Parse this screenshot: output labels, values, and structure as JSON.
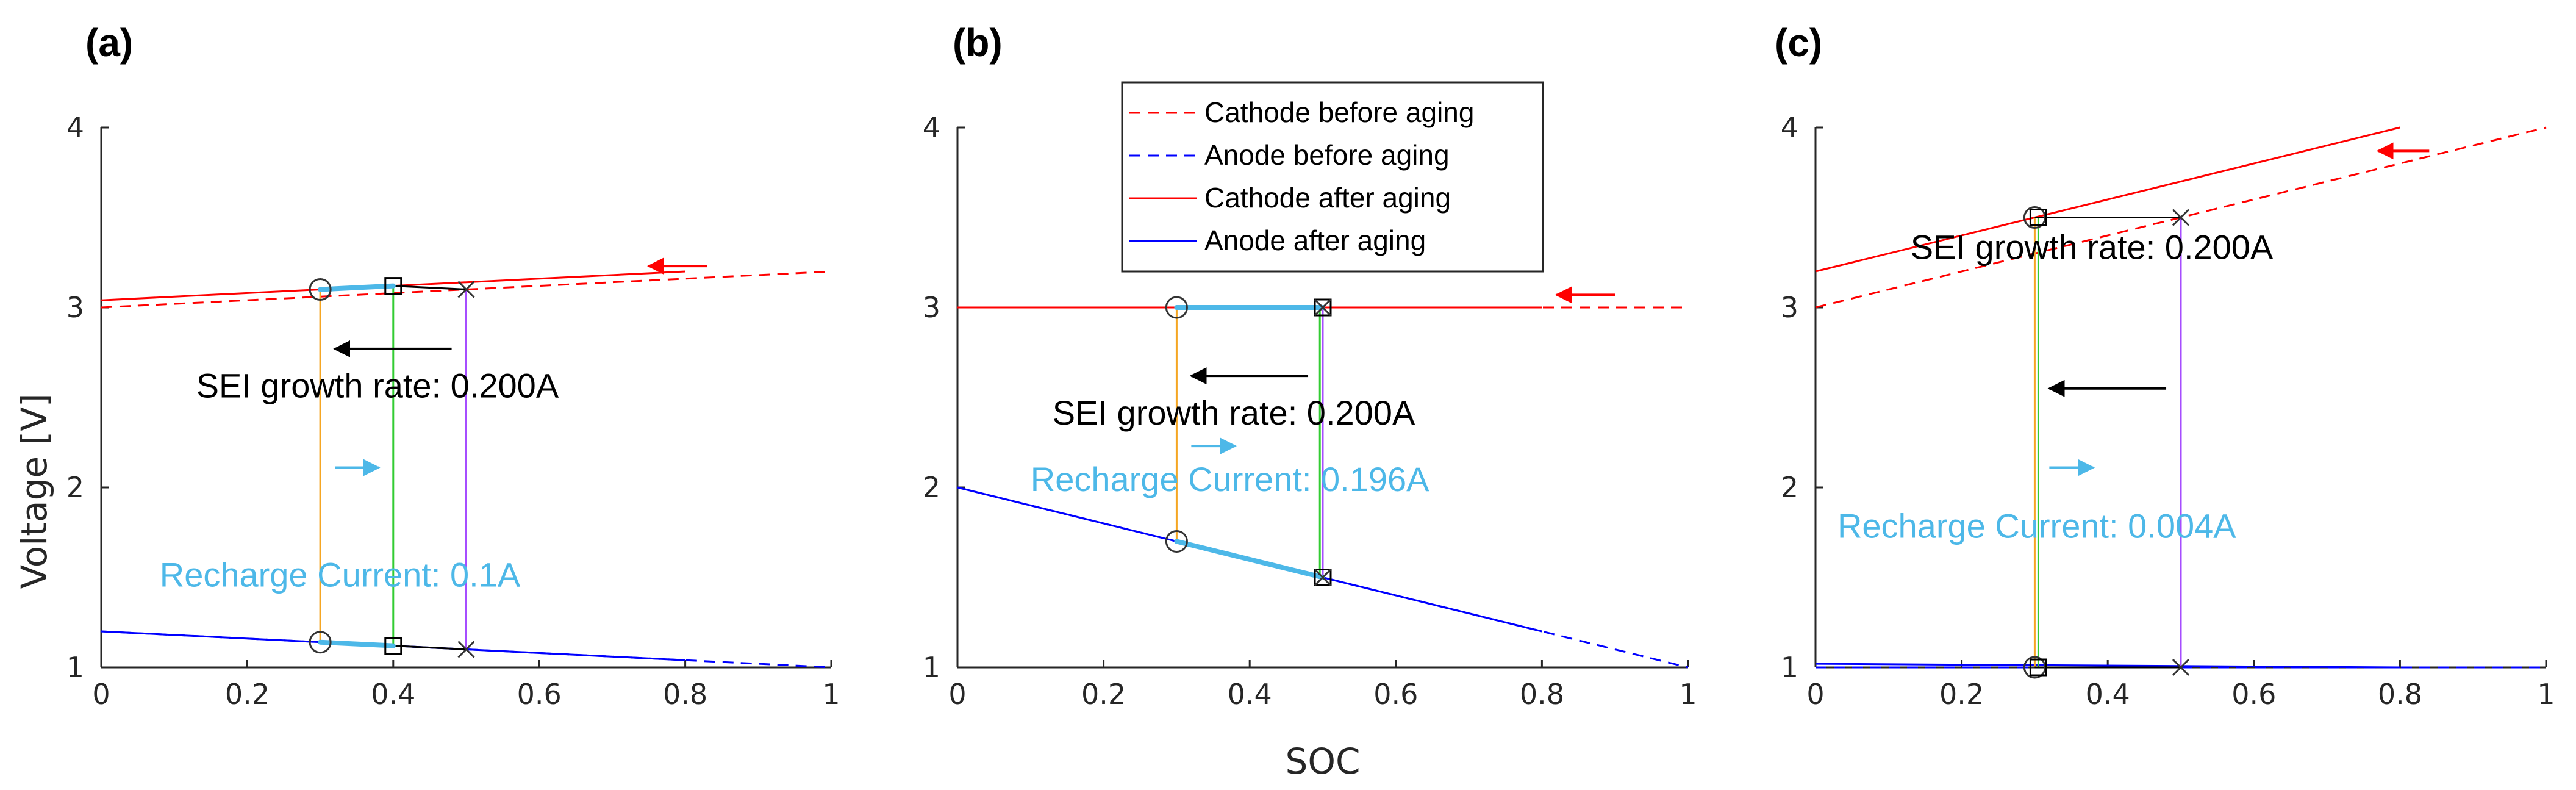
{
  "colors": {
    "cathode": "#ff0000",
    "anode": "#0000ff",
    "cyan": "#4db8e8",
    "orange": "#f5a623",
    "green": "#33cc33",
    "purple": "#a64dff",
    "black": "#000000",
    "axis": "#262626"
  },
  "legend": {
    "entries": [
      {
        "label": "Cathode before aging",
        "color": "#ff0000",
        "style": "dashed"
      },
      {
        "label": "Anode before aging",
        "color": "#0000ff",
        "style": "dashed"
      },
      {
        "label": "Cathode after aging",
        "color": "#ff0000",
        "style": "solid"
      },
      {
        "label": "Anode  after aging",
        "color": "#0000ff",
        "style": "solid"
      }
    ]
  },
  "chart_data": [
    {
      "type": "line",
      "panel_label": "(a)",
      "xlabel": "",
      "ylabel": "Voltage [V]",
      "xlim": [
        0,
        1
      ],
      "ylim": [
        1,
        4
      ],
      "xticks": [
        "0",
        "0.2",
        "0.4",
        "0.6",
        "0.8",
        "1"
      ],
      "yticks": [
        "1",
        "2",
        "3",
        "4"
      ],
      "series": [
        {
          "name": "Cathode before aging",
          "x": [
            0,
            1
          ],
          "y": [
            3.0,
            3.2
          ],
          "color": "#ff0000",
          "style": "dashed"
        },
        {
          "name": "Anode before aging",
          "x": [
            0,
            1
          ],
          "y": [
            1.2,
            1.0
          ],
          "color": "#0000ff",
          "style": "dashed"
        },
        {
          "name": "Cathode after aging",
          "x": [
            0,
            0.8
          ],
          "y": [
            3.04,
            3.2
          ],
          "color": "#ff0000",
          "style": "solid"
        },
        {
          "name": "Anode  after aging",
          "x": [
            0,
            0.8
          ],
          "y": [
            1.2,
            1.04
          ],
          "color": "#0000ff",
          "style": "solid"
        }
      ],
      "cyan_segments": [
        {
          "x": [
            0.3,
            0.4
          ],
          "y": [
            3.1,
            3.12
          ]
        },
        {
          "x": [
            0.3,
            0.4
          ],
          "y": [
            1.14,
            1.12
          ]
        }
      ],
      "vlines": [
        {
          "x": 0.3,
          "y": [
            1.14,
            3.1
          ],
          "color": "#f5a623"
        },
        {
          "x": 0.4,
          "y": [
            1.12,
            3.12
          ],
          "color": "#33cc33"
        },
        {
          "x": 0.5,
          "y": [
            1.1,
            3.1
          ],
          "color": "#a64dff"
        }
      ],
      "markers": [
        {
          "shape": "circle",
          "x": 0.3,
          "y": 3.1
        },
        {
          "shape": "square",
          "x": 0.4,
          "y": 3.12
        },
        {
          "shape": "cross",
          "x": 0.5,
          "y": 3.1
        },
        {
          "shape": "circle",
          "x": 0.3,
          "y": 1.14
        },
        {
          "shape": "square",
          "x": 0.4,
          "y": 1.12
        },
        {
          "shape": "cross",
          "x": 0.5,
          "y": 1.1
        }
      ],
      "black_segments": [
        {
          "x": [
            0.4,
            0.5
          ],
          "y": [
            3.12,
            3.1
          ]
        },
        {
          "x": [
            0.4,
            0.5
          ],
          "y": [
            1.12,
            1.1
          ]
        }
      ],
      "arrows": [
        {
          "color": "#ff0000",
          "x": [
            0.83,
            0.75
          ],
          "y": [
            3.23,
            3.23
          ]
        },
        {
          "color": "#000000",
          "x": [
            0.48,
            0.32
          ],
          "y": [
            2.77,
            2.77
          ]
        },
        {
          "color": "#4db8e8",
          "x": [
            0.32,
            0.38
          ],
          "y": [
            2.11,
            2.11
          ]
        }
      ],
      "annotations": {
        "sei": {
          "text": "SEI growth rate: 0.200A",
          "x": 0.13,
          "y": 2.5
        },
        "recharge": {
          "text": "Recharge Current: 0.1A",
          "x": 0.08,
          "y": 1.45
        }
      }
    },
    {
      "type": "line",
      "panel_label": "(b)",
      "xlabel": "SOC",
      "ylabel": "",
      "xlim": [
        0,
        1
      ],
      "ylim": [
        1,
        4
      ],
      "xticks": [
        "0",
        "0.2",
        "0.4",
        "0.6",
        "0.8",
        "1"
      ],
      "yticks": [
        "1",
        "2",
        "3",
        "4"
      ],
      "series": [
        {
          "name": "Cathode before aging",
          "x": [
            0,
            1
          ],
          "y": [
            3.0,
            3.0
          ],
          "color": "#ff0000",
          "style": "dashed"
        },
        {
          "name": "Anode before aging",
          "x": [
            0,
            1
          ],
          "y": [
            2.0,
            1.0
          ],
          "color": "#0000ff",
          "style": "dashed"
        },
        {
          "name": "Cathode after aging",
          "x": [
            0,
            0.8
          ],
          "y": [
            3.0,
            3.0
          ],
          "color": "#ff0000",
          "style": "solid"
        },
        {
          "name": "Anode  after aging",
          "x": [
            0,
            0.8
          ],
          "y": [
            2.0,
            1.2
          ],
          "color": "#0000ff",
          "style": "solid"
        }
      ],
      "cyan_segments": [
        {
          "x": [
            0.3,
            0.5
          ],
          "y": [
            3.0,
            3.0
          ]
        },
        {
          "x": [
            0.3,
            0.5
          ],
          "y": [
            1.7,
            1.5
          ]
        }
      ],
      "vlines": [
        {
          "x": 0.3,
          "y": [
            1.7,
            3.0
          ],
          "color": "#f5a623"
        },
        {
          "x": 0.496,
          "y": [
            1.5,
            3.0
          ],
          "color": "#33cc33"
        },
        {
          "x": 0.5,
          "y": [
            1.5,
            3.0
          ],
          "color": "#a64dff"
        }
      ],
      "markers": [
        {
          "shape": "circle",
          "x": 0.3,
          "y": 3.0
        },
        {
          "shape": "square",
          "x": 0.5,
          "y": 3.0
        },
        {
          "shape": "cross",
          "x": 0.5,
          "y": 3.0
        },
        {
          "shape": "circle",
          "x": 0.3,
          "y": 1.7
        },
        {
          "shape": "square",
          "x": 0.5,
          "y": 1.5
        },
        {
          "shape": "cross",
          "x": 0.5,
          "y": 1.5
        }
      ],
      "black_segments": [],
      "arrows": [
        {
          "color": "#ff0000",
          "x": [
            0.9,
            0.82
          ],
          "y": [
            3.07,
            3.07
          ]
        },
        {
          "color": "#000000",
          "x": [
            0.48,
            0.32
          ],
          "y": [
            2.62,
            2.62
          ]
        },
        {
          "color": "#4db8e8",
          "x": [
            0.32,
            0.38
          ],
          "y": [
            2.23,
            2.23
          ]
        }
      ],
      "annotations": {
        "sei": {
          "text": "SEI growth rate: 0.200A",
          "x": 0.13,
          "y": 2.35
        },
        "recharge": {
          "text": "Recharge Current: 0.196A",
          "x": 0.1,
          "y": 1.98
        }
      }
    },
    {
      "type": "line",
      "panel_label": "(c)",
      "xlabel": "",
      "ylabel": "",
      "xlim": [
        0,
        1
      ],
      "ylim": [
        1,
        4
      ],
      "xticks": [
        "0",
        "0.2",
        "0.4",
        "0.6",
        "0.8",
        "1"
      ],
      "yticks": [
        "1",
        "2",
        "3",
        "4"
      ],
      "series": [
        {
          "name": "Cathode before aging",
          "x": [
            0,
            1
          ],
          "y": [
            3.0,
            4.0
          ],
          "color": "#ff0000",
          "style": "dashed"
        },
        {
          "name": "Anode before aging",
          "x": [
            0,
            1
          ],
          "y": [
            1.0,
            1.0
          ],
          "color": "#0000ff",
          "style": "dashed"
        },
        {
          "name": "Cathode after aging",
          "x": [
            0,
            0.8
          ],
          "y": [
            3.2,
            4.0
          ],
          "color": "#ff0000",
          "style": "solid"
        },
        {
          "name": "Anode  after aging",
          "x": [
            0,
            0.8
          ],
          "y": [
            1.02,
            1.0
          ],
          "color": "#0000ff",
          "style": "solid"
        }
      ],
      "cyan_segments": [],
      "vlines": [
        {
          "x": 0.3,
          "y": [
            1.0,
            3.5
          ],
          "color": "#f5a623"
        },
        {
          "x": 0.305,
          "y": [
            1.0,
            3.5
          ],
          "color": "#33cc33"
        },
        {
          "x": 0.5,
          "y": [
            1.0,
            3.5
          ],
          "color": "#a64dff"
        }
      ],
      "markers": [
        {
          "shape": "circle",
          "x": 0.3,
          "y": 3.5
        },
        {
          "shape": "square",
          "x": 0.305,
          "y": 3.5
        },
        {
          "shape": "cross",
          "x": 0.5,
          "y": 3.5
        },
        {
          "shape": "circle",
          "x": 0.3,
          "y": 1.0
        },
        {
          "shape": "square",
          "x": 0.305,
          "y": 1.0
        },
        {
          "shape": "cross",
          "x": 0.5,
          "y": 1.0
        }
      ],
      "black_segments": [
        {
          "x": [
            0.3,
            0.5
          ],
          "y": [
            3.5,
            3.5
          ]
        },
        {
          "x": [
            0.3,
            0.5
          ],
          "y": [
            1.0,
            1.0
          ]
        }
      ],
      "arrows": [
        {
          "color": "#ff0000",
          "x": [
            0.84,
            0.77
          ],
          "y": [
            3.87,
            3.87
          ]
        },
        {
          "color": "#000000",
          "x": [
            0.48,
            0.32
          ],
          "y": [
            2.55,
            2.55
          ]
        },
        {
          "color": "#4db8e8",
          "x": [
            0.32,
            0.38
          ],
          "y": [
            2.11,
            2.11
          ]
        }
      ],
      "annotations": {
        "sei": {
          "text": "SEI growth rate: 0.200A",
          "x": 0.13,
          "y": 3.27
        },
        "recharge": {
          "text": "Recharge Current: 0.004A",
          "x": 0.03,
          "y": 1.72
        }
      }
    }
  ]
}
